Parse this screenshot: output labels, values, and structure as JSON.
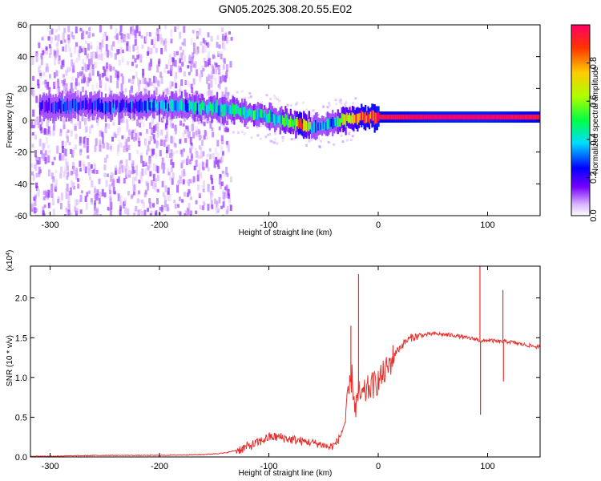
{
  "title": "GN05.2025.308.20.55.E02",
  "chart_data": [
    {
      "type": "heatmap",
      "name": "spectrogram",
      "xlabel": "Height of straight line (km)",
      "ylabel": "Frequency (Hz)",
      "xlim": [
        -318,
        148
      ],
      "ylim": [
        -60,
        60
      ],
      "xticks": [
        -300,
        -200,
        -100,
        0,
        100
      ],
      "xtick_labels": [
        "-300",
        "-200",
        "-100",
        "0",
        "100"
      ],
      "yticks": [
        -60,
        -40,
        -20,
        0,
        20,
        40,
        60
      ],
      "ytick_labels": [
        "-60",
        "-40",
        "-20",
        "0",
        "20",
        "40",
        "60"
      ],
      "ridge": {
        "x": [
          -310,
          -280,
          -250,
          -220,
          -190,
          -160,
          -140,
          -120,
          -100,
          -80,
          -70,
          -60,
          -50,
          -40,
          -30,
          -20,
          0,
          50,
          100,
          148
        ],
        "freq_hz": [
          9,
          9,
          9,
          9,
          9,
          8,
          7,
          5,
          2,
          -1,
          -3,
          -5,
          -4,
          -1,
          1,
          2,
          2,
          2,
          2,
          2
        ],
        "amplitude": [
          0.3,
          0.3,
          0.32,
          0.35,
          0.4,
          0.45,
          0.5,
          0.55,
          0.45,
          0.55,
          0.9,
          0.4,
          0.35,
          0.5,
          0.7,
          0.85,
          0.95,
          1.0,
          1.0,
          0.95
        ]
      },
      "colorbar": {
        "label": "Normalized spectral amplitude",
        "range": [
          0.0,
          1.0
        ],
        "ticks": [
          0.0,
          0.2,
          0.4,
          0.6,
          0.8
        ],
        "tick_labels": [
          "0.0",
          "0.2",
          "0.4",
          "0.6",
          "0.8"
        ],
        "colors": [
          "#ffffff",
          "#cc99ff",
          "#7700ff",
          "#0000ff",
          "#00ddff",
          "#00ff44",
          "#aaff00",
          "#ffcc00",
          "#ff3300",
          "#ff0066"
        ]
      }
    },
    {
      "type": "line",
      "name": "snr",
      "xlabel": "Height of straight line (km)",
      "ylabel": "SNR (10 * v/v)",
      "yscale_label": "(x10",
      "yscale_exp": "4",
      "xlim": [
        -318,
        148
      ],
      "ylim": [
        0,
        2.4
      ],
      "xticks": [
        -300,
        -200,
        -100,
        0,
        100
      ],
      "xtick_labels": [
        "-300",
        "-200",
        "-100",
        "0",
        "100"
      ],
      "yticks": [
        0.0,
        0.5,
        1.0,
        1.5,
        2.0
      ],
      "ytick_labels": [
        "0.0",
        "0.5",
        "1.0",
        "1.5",
        "2.0"
      ],
      "color": "#e8302c",
      "series": [
        {
          "name": "SNR",
          "x": [
            -318,
            -300,
            -250,
            -200,
            -160,
            -140,
            -125,
            -110,
            -100,
            -90,
            -80,
            -70,
            -60,
            -50,
            -45,
            -40,
            -35,
            -30,
            -27,
            -24,
            -21,
            -18,
            -15,
            -10,
            -5,
            0,
            5,
            10,
            15,
            20,
            25,
            30,
            40,
            50,
            60,
            70,
            80,
            90,
            95,
            100,
            110,
            120,
            130,
            148
          ],
          "values": [
            0.01,
            0.01,
            0.02,
            0.02,
            0.03,
            0.05,
            0.1,
            0.18,
            0.25,
            0.25,
            0.22,
            0.2,
            0.18,
            0.15,
            0.12,
            0.15,
            0.25,
            0.45,
            0.8,
            1.0,
            0.6,
            0.8,
            0.75,
            0.85,
            0.9,
            0.95,
            1.05,
            1.15,
            1.3,
            1.38,
            1.45,
            1.5,
            1.53,
            1.55,
            1.54,
            1.53,
            1.5,
            1.48,
            1.45,
            1.47,
            1.45,
            1.45,
            1.42,
            1.38
          ]
        }
      ],
      "spikes": [
        {
          "x": -18,
          "value": 2.3
        },
        {
          "x": 93,
          "value": 2.45
        },
        {
          "x": 93.5,
          "value": 0.53
        },
        {
          "x": 114,
          "value": 2.1
        },
        {
          "x": 114.5,
          "value": 0.95
        },
        {
          "x": -25,
          "value": 1.65
        }
      ]
    }
  ]
}
